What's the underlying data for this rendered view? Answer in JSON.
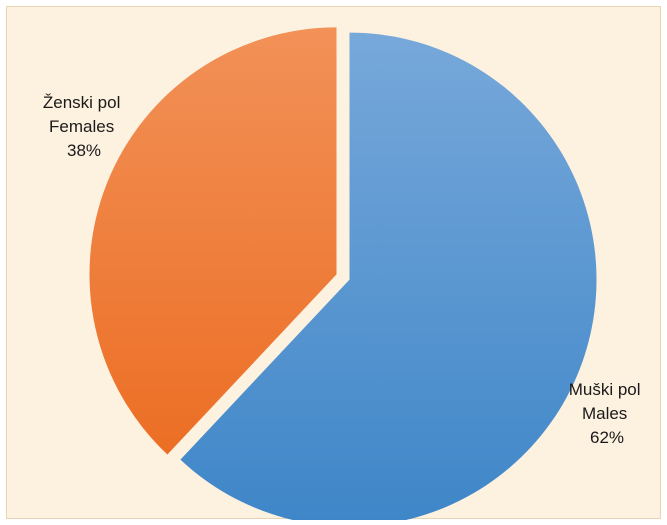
{
  "chart_data": {
    "type": "pie",
    "title": "",
    "legend": "none",
    "slices": [
      {
        "name_local": "Muški pol",
        "name_en": "Males",
        "value": 62,
        "value_label": "62%",
        "color_top": "#77a8da",
        "color_bottom": "#3e86c8"
      },
      {
        "name_local": "Ženski pol",
        "name_en": "Females",
        "value": 38,
        "value_label": "38%",
        "color_top": "#f29158",
        "color_bottom": "#ec6e24"
      }
    ]
  }
}
